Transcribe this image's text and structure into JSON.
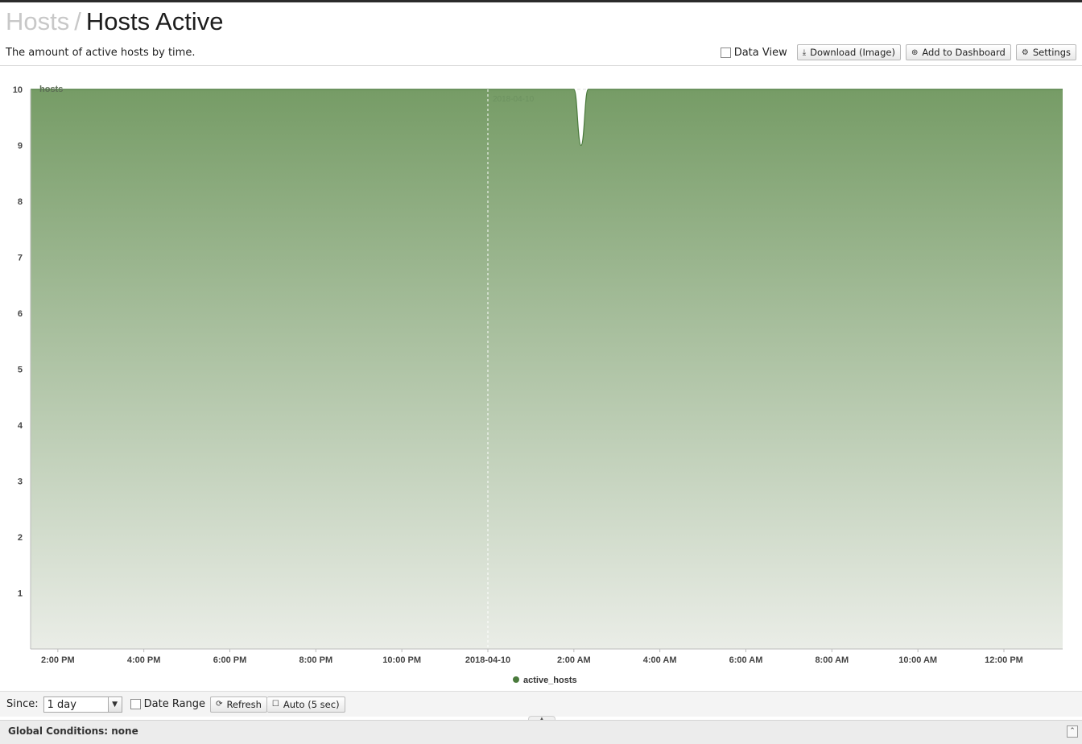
{
  "header": {
    "breadcrumb_parent": "Hosts",
    "breadcrumb_separator": "/",
    "title": "Hosts Active",
    "description": "The amount of active hosts by time."
  },
  "toolbar": {
    "data_view_label": "Data View",
    "download_label": "Download (Image)",
    "add_dashboard_label": "Add to Dashboard",
    "settings_label": "Settings"
  },
  "chart_data": {
    "type": "area",
    "ylabel": "hosts",
    "ylim": [
      0,
      10
    ],
    "yticks": [
      1,
      2,
      3,
      4,
      5,
      6,
      7,
      8,
      9,
      10
    ],
    "x_tick_labels": [
      "2:00 PM",
      "4:00 PM",
      "6:00 PM",
      "8:00 PM",
      "10:00 PM",
      "2018-04-10",
      "2:00 AM",
      "4:00 AM",
      "6:00 AM",
      "8:00 AM",
      "10:00 AM",
      "12:00 PM"
    ],
    "x_range": [
      "2018-04-09 13:22",
      "2018-04-10 13:22"
    ],
    "date_marker": {
      "x": "2018-04-10 00:00",
      "label": "2018-04-10"
    },
    "series": [
      {
        "name": "active_hosts",
        "color": "#4a7a3c",
        "x": [
          "2018-04-09 13:22",
          "2018-04-10 02:00",
          "2018-04-10 02:10",
          "2018-04-10 02:20",
          "2018-04-10 13:22"
        ],
        "y": [
          10,
          10,
          9,
          10,
          10
        ]
      }
    ],
    "grid": true,
    "legend_position": "bottom-center"
  },
  "controls": {
    "since_label": "Since:",
    "since_value": "1 day",
    "date_range_label": "Date Range",
    "refresh_label": "Refresh",
    "auto_label": "Auto (5 sec)"
  },
  "footer": {
    "global_conditions": "Global Conditions: none"
  },
  "icons": {
    "download": "download-icon",
    "add": "plus-circle-icon",
    "settings": "gear-icon",
    "refresh": "refresh-icon",
    "collapse": "chevron-up-icon"
  }
}
